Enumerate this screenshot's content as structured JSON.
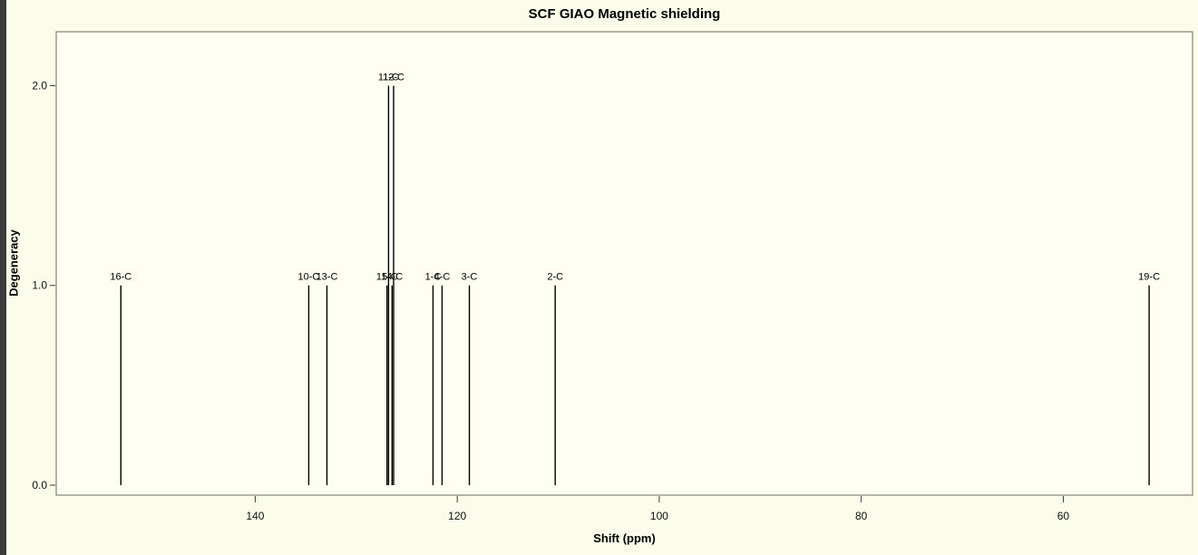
{
  "window": {
    "bg_color": "#FCFCEA",
    "plot_bg_color": "#FEFEF2",
    "frame_color": "#6a6a5e",
    "peak_color": "#000000"
  },
  "chart_data": {
    "type": "bar",
    "subtype": "stick-spectrum",
    "title": "SCF GIAO Magnetic shielding",
    "xlabel": "Shift (ppm)",
    "ylabel": "Degeneracy",
    "x_axis_reversed": true,
    "xlim": [
      159.7,
      47.2
    ],
    "ylim": [
      -0.05,
      2.27
    ],
    "x_ticks": [
      140,
      120,
      100,
      80,
      60
    ],
    "y_ticks": [
      0.0,
      1.0,
      2.0
    ],
    "grid": false,
    "legend": false,
    "peaks": [
      {
        "label": "16-C",
        "shift": 153.3,
        "degeneracy": 1
      },
      {
        "label": "10-C",
        "shift": 134.7,
        "degeneracy": 1
      },
      {
        "label": "13-C",
        "shift": 132.9,
        "degeneracy": 1
      },
      {
        "label": "15-C",
        "shift": 126.95,
        "degeneracy": 1
      },
      {
        "label": "11-C",
        "shift": 126.8,
        "degeneracy": 2
      },
      {
        "label": "14-C",
        "shift": 126.45,
        "degeneracy": 1
      },
      {
        "label": "12-C",
        "shift": 126.3,
        "degeneracy": 2
      },
      {
        "label": "1-C",
        "shift": 122.4,
        "degeneracy": 1
      },
      {
        "label": "4-C",
        "shift": 121.5,
        "degeneracy": 1
      },
      {
        "label": "3-C",
        "shift": 118.8,
        "degeneracy": 1
      },
      {
        "label": "2-C",
        "shift": 110.3,
        "degeneracy": 1
      },
      {
        "label": "19-C",
        "shift": 51.5,
        "degeneracy": 1
      }
    ]
  }
}
